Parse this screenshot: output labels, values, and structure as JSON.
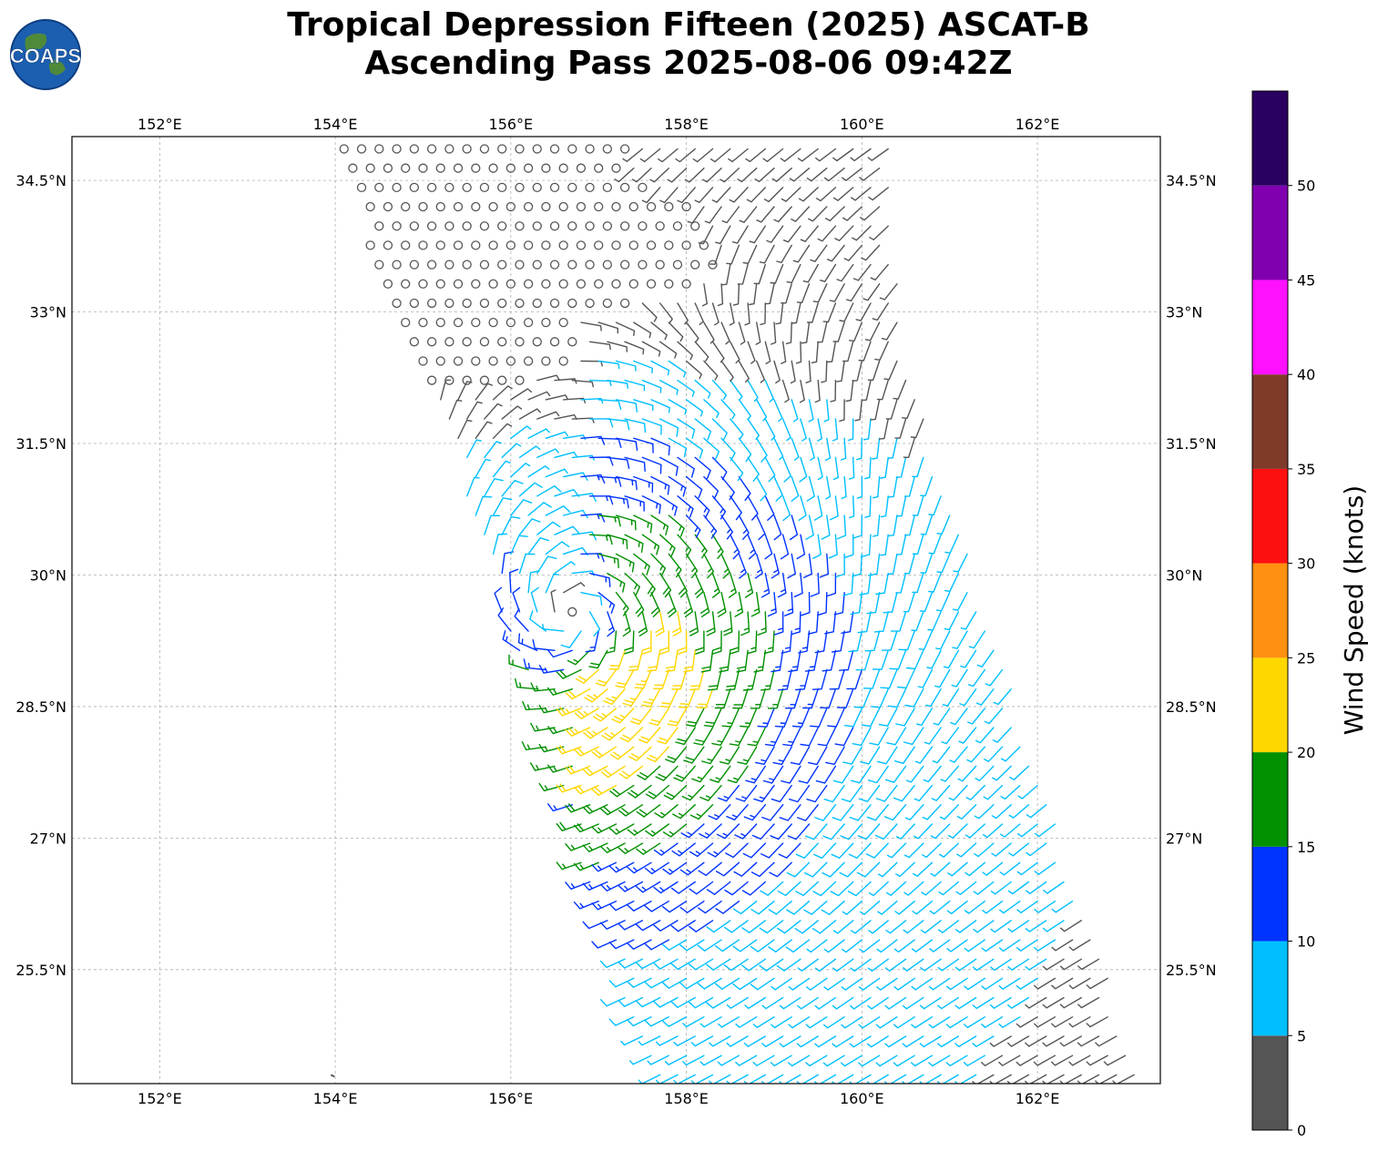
{
  "title_line1": "Tropical Depression Fifteen (2025) ASCAT-B",
  "title_line2": "Ascending Pass 2025-08-06 09:42Z",
  "logo_text": "COAPS",
  "map": {
    "lon_range": [
      151.0,
      163.4
    ],
    "lat_range": [
      24.2,
      35.0
    ],
    "lon_ticks": [
      152,
      154,
      156,
      158,
      160,
      162
    ],
    "lon_tick_labels": [
      "152°E",
      "154°E",
      "156°E",
      "158°E",
      "160°E",
      "162°E"
    ],
    "lat_ticks": [
      25.5,
      27,
      28.5,
      30,
      31.5,
      33,
      34.5
    ],
    "lat_tick_labels": [
      "25.5°N",
      "27°N",
      "28.5°N",
      "30°N",
      "31.5°N",
      "33°N",
      "34.5°N"
    ],
    "grid": true,
    "storm_center_lon": 156.7,
    "storm_center_lat": 29.4,
    "swath_corners": [
      [
        153.9,
        35.0
      ],
      [
        157.3,
        35.0
      ],
      [
        160.3,
        35.0
      ],
      [
        160.5,
        32.4
      ],
      [
        163.2,
        24.2
      ],
      [
        157.6,
        24.2
      ],
      [
        156.2,
        28.6
      ],
      [
        155.3,
        31.5
      ]
    ]
  },
  "colorbar": {
    "label": "Wind Speed (knots)",
    "ticks": [
      "0",
      "5",
      "10",
      "15",
      "20",
      "25",
      "30",
      "35",
      "40",
      "45",
      "50"
    ],
    "bins": [
      {
        "min": 0,
        "max": 5,
        "color": "#555555"
      },
      {
        "min": 5,
        "max": 10,
        "color": "#00bfff"
      },
      {
        "min": 10,
        "max": 15,
        "color": "#0033ff"
      },
      {
        "min": 15,
        "max": 20,
        "color": "#009000"
      },
      {
        "min": 20,
        "max": 25,
        "color": "#ffd700"
      },
      {
        "min": 25,
        "max": 30,
        "color": "#ff9010"
      },
      {
        "min": 30,
        "max": 35,
        "color": "#ff1010"
      },
      {
        "min": 35,
        "max": 40,
        "color": "#7f3a2a"
      },
      {
        "min": 40,
        "max": 45,
        "color": "#ff10ff"
      },
      {
        "min": 45,
        "max": 50,
        "color": "#8000b0"
      },
      {
        "min": 50,
        "max": 55,
        "color": "#2a0060"
      }
    ]
  }
}
